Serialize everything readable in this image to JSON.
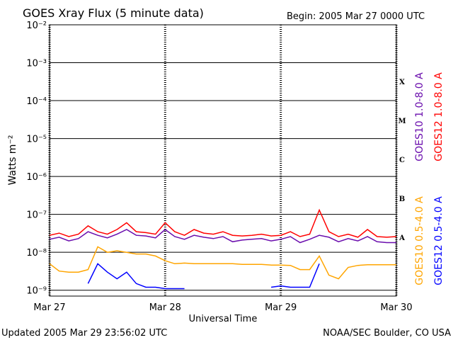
{
  "chart_data": {
    "type": "line",
    "title": "GOES Xray Flux (5 minute data)",
    "subtitle": "Begin:  2005 Mar 27 0000 UTC",
    "x_label": "Universal Time",
    "y_label": "Watts m⁻²",
    "footer_left": "Updated 2005 Mar 29 23:56:02 UTC",
    "footer_right": "NOAA/SEC Boulder, CO USA",
    "flare_classes": [
      "X",
      "M",
      "C",
      "B",
      "A"
    ],
    "log_y": true,
    "grid": true,
    "xlim": [
      0,
      72
    ],
    "xticks": [
      {
        "value": 0,
        "label": "Mar 27"
      },
      {
        "value": 24,
        "label": "Mar 28"
      },
      {
        "value": 48,
        "label": "Mar 29"
      },
      {
        "value": 72,
        "label": "Mar 30"
      }
    ],
    "ylim": [
      7e-10,
      0.01
    ],
    "yticks": [
      {
        "value": 1e-09,
        "label": "10⁻⁹"
      },
      {
        "value": 1e-08,
        "label": "10⁻⁸"
      },
      {
        "value": 1e-07,
        "label": "10⁻⁷"
      },
      {
        "value": 1e-06,
        "label": "10⁻⁶"
      },
      {
        "value": 1e-05,
        "label": "10⁻⁵"
      },
      {
        "value": 0.0001,
        "label": "10⁻⁴"
      },
      {
        "value": 0.001,
        "label": "10⁻³"
      },
      {
        "value": 0.01,
        "label": "10⁻²"
      }
    ],
    "x": [
      0,
      2,
      4,
      6,
      8,
      10,
      12,
      14,
      16,
      18,
      20,
      22,
      24,
      26,
      28,
      30,
      32,
      34,
      36,
      38,
      40,
      42,
      44,
      46,
      48,
      50,
      52,
      54,
      56,
      58,
      60,
      62,
      64,
      66,
      68,
      70,
      72
    ],
    "series": [
      {
        "name": "GOES10 1.0-8.0 A",
        "color": "#6a0dad",
        "values": [
          2.2e-08,
          2.5e-08,
          2e-08,
          2.3e-08,
          3.5e-08,
          2.8e-08,
          2.4e-08,
          3e-08,
          4e-08,
          2.8e-08,
          2.7e-08,
          2.4e-08,
          4e-08,
          2.6e-08,
          2.2e-08,
          2.8e-08,
          2.5e-08,
          2.3e-08,
          2.6e-08,
          1.9e-08,
          2.1e-08,
          2.2e-08,
          2.3e-08,
          2e-08,
          2.2e-08,
          2.6e-08,
          1.8e-08,
          2.2e-08,
          2.8e-08,
          2.5e-08,
          1.9e-08,
          2.3e-08,
          2e-08,
          2.6e-08,
          1.9e-08,
          1.8e-08,
          1.8e-08
        ]
      },
      {
        "name": "GOES12 1.0-8.0 A",
        "color": "#ff0000",
        "values": [
          2.8e-08,
          3.2e-08,
          2.6e-08,
          3e-08,
          5e-08,
          3.5e-08,
          3e-08,
          4e-08,
          6e-08,
          3.5e-08,
          3.3e-08,
          3e-08,
          6e-08,
          3.5e-08,
          2.8e-08,
          4e-08,
          3.2e-08,
          3e-08,
          3.5e-08,
          2.8e-08,
          2.7e-08,
          2.8e-08,
          3e-08,
          2.7e-08,
          2.8e-08,
          3.5e-08,
          2.6e-08,
          3e-08,
          1.3e-07,
          3.5e-08,
          2.6e-08,
          3e-08,
          2.5e-08,
          4e-08,
          2.6e-08,
          2.5e-08,
          2.6e-08
        ]
      },
      {
        "name": "GOES10 0.5-4.0 A",
        "color": "#ffa500",
        "values": [
          5e-09,
          3.2e-09,
          3e-09,
          3e-09,
          3.5e-09,
          1.4e-08,
          1e-08,
          1.1e-08,
          1e-08,
          9e-09,
          9e-09,
          8e-09,
          6e-09,
          5e-09,
          5.2e-09,
          5e-09,
          5e-09,
          5e-09,
          5e-09,
          5e-09,
          4.8e-09,
          4.8e-09,
          4.8e-09,
          4.6e-09,
          4.6e-09,
          4.5e-09,
          3.5e-09,
          3.5e-09,
          8e-09,
          2.5e-09,
          2e-09,
          4e-09,
          4.5e-09,
          4.7e-09,
          4.7e-09,
          4.7e-09,
          4.7e-09
        ]
      },
      {
        "name": "GOES12 0.5-4.0 A",
        "color": "#0000ff",
        "values": [
          null,
          null,
          null,
          null,
          1.5e-09,
          5e-09,
          3e-09,
          2e-09,
          3e-09,
          1.5e-09,
          1.2e-09,
          1.2e-09,
          1.1e-09,
          1.1e-09,
          1.1e-09,
          null,
          null,
          null,
          null,
          null,
          null,
          null,
          null,
          1.2e-09,
          1.3e-09,
          1.2e-09,
          1.2e-09,
          1.2e-09,
          5e-09,
          null,
          null,
          null,
          null,
          null,
          null,
          1.1e-09,
          null
        ]
      }
    ]
  }
}
